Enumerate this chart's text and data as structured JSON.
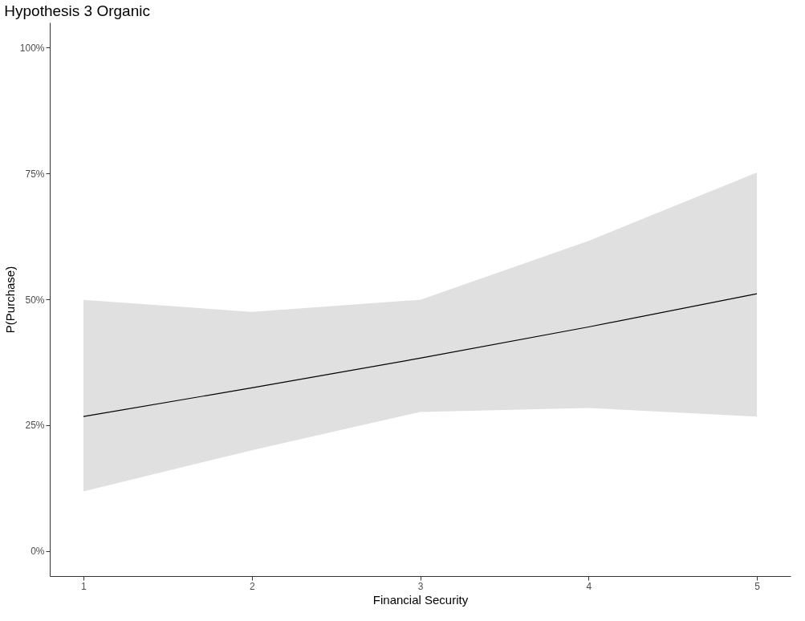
{
  "chart_data": {
    "type": "line",
    "title": "Hypothesis 3 Organic",
    "xlabel": "Financial Security",
    "ylabel": "P(Purchase)",
    "x": [
      1,
      2,
      3,
      4,
      5
    ],
    "series": [
      {
        "color": "#000000",
        "values": [
          26.7,
          32.4,
          38.3,
          44.5,
          51.1
        ],
        "lower": [
          11.8,
          20.0,
          27.6,
          28.4,
          26.7
        ],
        "upper": [
          49.9,
          47.5,
          49.9,
          61.6,
          75.2
        ]
      }
    ],
    "xlim": [
      0.8,
      5.2
    ],
    "xticks": [
      1,
      2,
      3,
      4,
      5
    ],
    "ylim": [
      -5,
      105
    ],
    "yticks": [
      {
        "value": 0,
        "label": "0%"
      },
      {
        "value": 25,
        "label": "25%"
      },
      {
        "value": 50,
        "label": "50%"
      },
      {
        "value": 75,
        "label": "75%"
      },
      {
        "value": 100,
        "label": "100%"
      }
    ],
    "grid": false,
    "marker": "none",
    "line_style": "solid"
  }
}
